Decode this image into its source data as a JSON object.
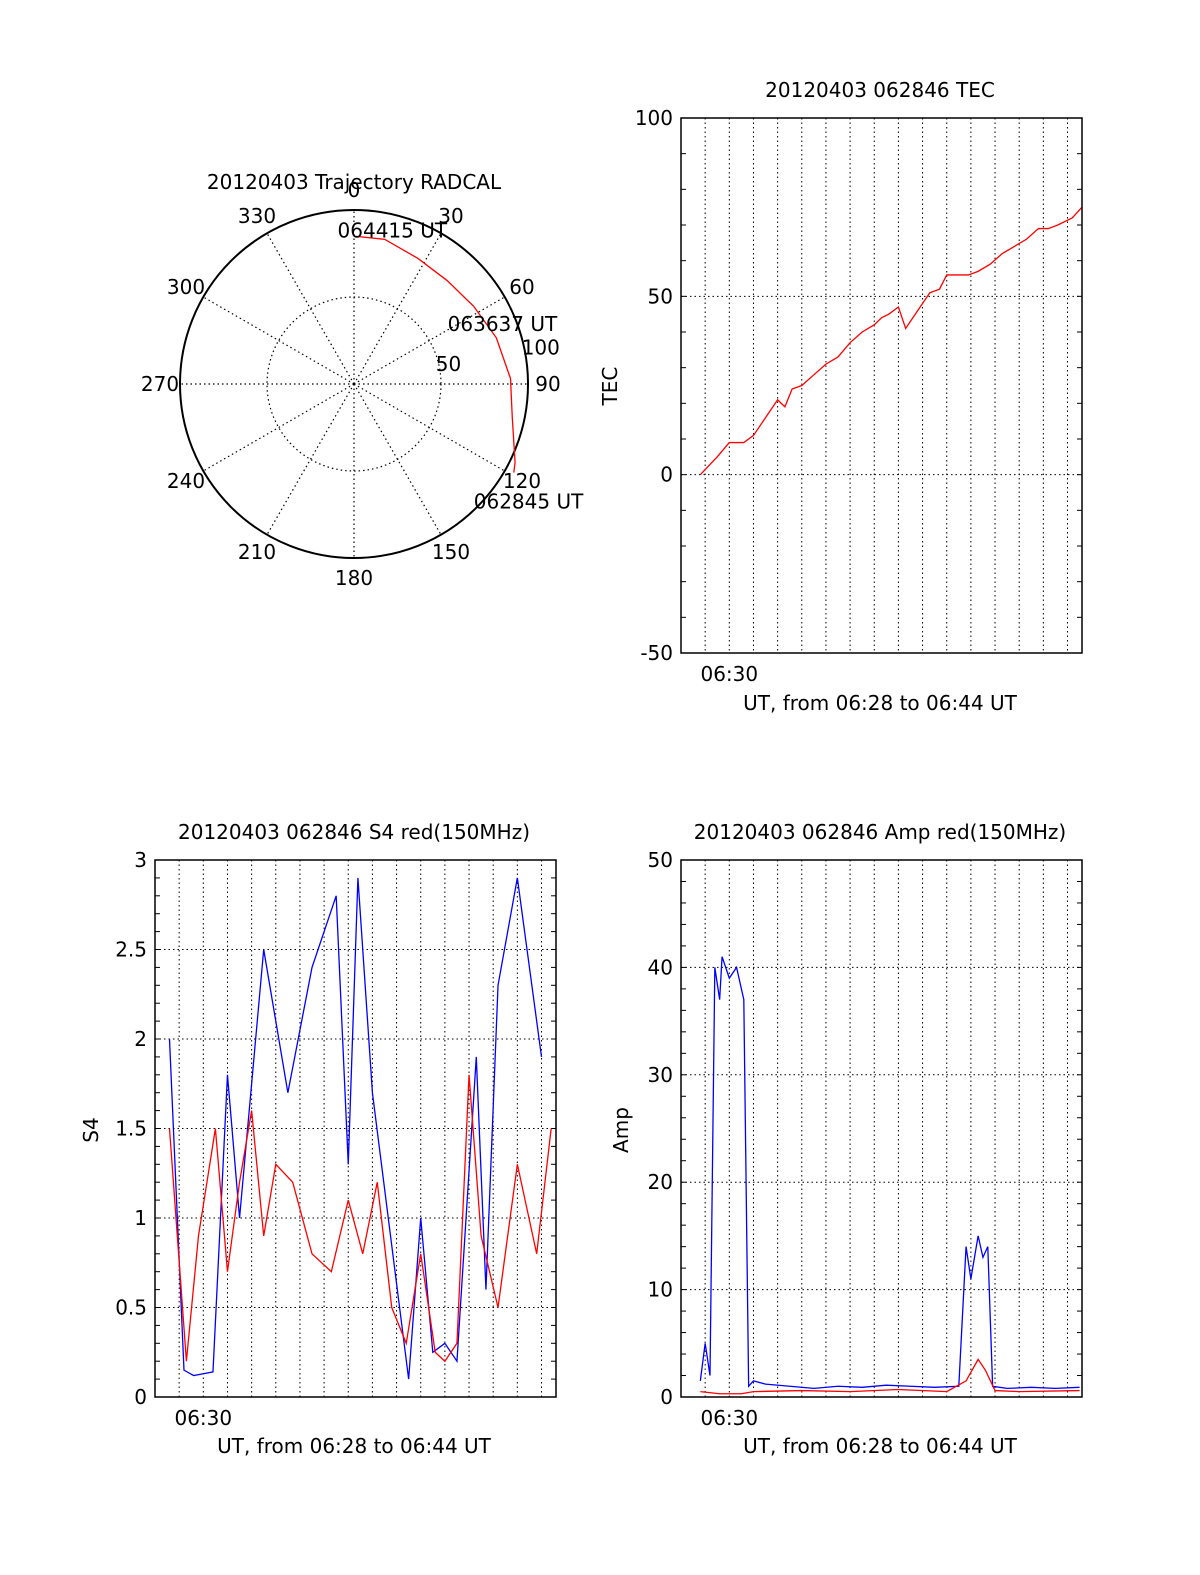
{
  "colors": {
    "red": "#ff0000",
    "blue": "#0000ff",
    "axis": "#000000",
    "grid": "#000000"
  },
  "chart_data": [
    {
      "id": "trajectory",
      "type": "polar",
      "title": "20120403 Trajectory RADCAL",
      "angle_labels": [
        "0",
        "30",
        "60",
        "90",
        "120",
        "150",
        "180",
        "210",
        "240",
        "270",
        "300",
        "330"
      ],
      "radius_labels": [
        "50",
        "100"
      ],
      "grid": true,
      "track": {
        "color": "red",
        "points": [
          {
            "az": 0,
            "zenith": 85
          },
          {
            "az": 12,
            "zenith": 85
          },
          {
            "az": 27,
            "zenith": 81
          },
          {
            "az": 42,
            "zenith": 80
          },
          {
            "az": 57,
            "zenith": 82
          },
          {
            "az": 72,
            "zenith": 86
          },
          {
            "az": 88,
            "zenith": 90
          },
          {
            "az": 102,
            "zenith": 93
          },
          {
            "az": 116,
            "zenith": 103
          },
          {
            "az": 119,
            "zenith": 105
          }
        ]
      },
      "annotations": [
        {
          "text": "064415 UT",
          "az": 14,
          "zenith": 91
        },
        {
          "text": "063637 UT",
          "az": 68,
          "zenith": 92
        },
        {
          "text": "062845 UT",
          "az": 124,
          "zenith": 121
        }
      ]
    },
    {
      "id": "tec",
      "type": "line",
      "title": "20120403 062846 TEC",
      "xlabel": "UT, from 06:28 to 06:44 UT",
      "ylabel": "TEC",
      "xlim": [
        28.0,
        44.6
      ],
      "ylim": [
        -50,
        100
      ],
      "yticks": [
        -50,
        0,
        50,
        100
      ],
      "xticks": [
        {
          "value": 30.0,
          "label": "06:30"
        }
      ],
      "grid": true,
      "series": [
        {
          "color": "red",
          "x": [
            28.8,
            29.5,
            30.0,
            30.6,
            31.0,
            31.5,
            32.0,
            32.3,
            32.6,
            33.0,
            33.5,
            34.0,
            34.5,
            35.0,
            35.5,
            36.0,
            36.3,
            36.6,
            37.0,
            37.3,
            37.5,
            37.9,
            38.3,
            38.7,
            39.0,
            39.4,
            39.9,
            40.3,
            40.8,
            41.3,
            41.8,
            42.3,
            42.8,
            43.2,
            43.6,
            44.2,
            44.6
          ],
          "y": [
            0,
            5,
            9,
            9,
            11,
            16,
            21,
            19,
            24,
            25,
            28,
            31,
            33,
            37,
            40,
            42,
            44,
            45,
            47,
            41,
            43,
            47,
            51,
            52,
            56,
            56,
            56,
            57,
            59,
            62,
            64,
            66,
            69,
            69,
            70,
            72,
            75
          ]
        }
      ]
    },
    {
      "id": "s4",
      "type": "line",
      "title": "20120403 062846 S4 red(150MHz)",
      "xlabel": "UT, from 06:28 to 06:44 UT",
      "ylabel": "S4",
      "xlim": [
        28.0,
        44.6
      ],
      "ylim": [
        0,
        3
      ],
      "yticks": [
        0,
        0.5,
        1,
        1.5,
        2,
        2.5,
        3
      ],
      "xticks": [
        {
          "value": 30.0,
          "label": "06:30"
        }
      ],
      "grid": true,
      "series": [
        {
          "color": "blue",
          "x": [
            28.6,
            29.2,
            29.6,
            30.0,
            30.4,
            31.0,
            31.5,
            32.5,
            33.5,
            34.5,
            35.5,
            36.0,
            36.4,
            37.0,
            38.5,
            39.0,
            39.5,
            40.0,
            40.5,
            41.3,
            41.7,
            42.2,
            43.0,
            44.0
          ],
          "y": [
            2.0,
            0.15,
            0.12,
            0.13,
            0.14,
            1.8,
            1.0,
            2.5,
            1.7,
            2.4,
            2.8,
            1.3,
            2.9,
            1.7,
            0.1,
            1.0,
            0.25,
            0.3,
            0.2,
            1.9,
            0.6,
            2.3,
            2.9,
            1.9
          ]
        },
        {
          "color": "red",
          "x": [
            28.6,
            29.3,
            29.8,
            30.5,
            31.0,
            31.5,
            32.0,
            32.5,
            33.0,
            33.7,
            34.5,
            35.3,
            36.0,
            36.6,
            37.2,
            37.8,
            38.4,
            39.0,
            39.6,
            40.0,
            40.5,
            41.0,
            41.5,
            42.2,
            43.0,
            43.8,
            44.4
          ],
          "y": [
            1.5,
            0.2,
            0.9,
            1.5,
            0.7,
            1.2,
            1.6,
            0.9,
            1.3,
            1.2,
            0.8,
            0.7,
            1.1,
            0.8,
            1.2,
            0.5,
            0.3,
            0.8,
            0.25,
            0.2,
            0.3,
            1.8,
            0.9,
            0.5,
            1.3,
            0.8,
            1.5
          ]
        }
      ]
    },
    {
      "id": "amp",
      "type": "line",
      "title": "20120403 062846 Amp red(150MHz)",
      "xlabel": "UT, from 06:28 to 06:44 UT",
      "ylabel": "Amp",
      "xlim": [
        28.0,
        44.6
      ],
      "ylim": [
        0,
        50
      ],
      "yticks": [
        0,
        10,
        20,
        30,
        40,
        50
      ],
      "xticks": [
        {
          "value": 30.0,
          "label": "06:30"
        }
      ],
      "grid": true,
      "series": [
        {
          "color": "blue",
          "x": [
            28.8,
            29.0,
            29.2,
            29.4,
            29.6,
            29.7,
            30.0,
            30.3,
            30.6,
            30.8,
            31.0,
            31.5,
            32.5,
            33.5,
            34.5,
            35.5,
            36.5,
            37.5,
            38.5,
            39.5,
            39.8,
            40.0,
            40.3,
            40.5,
            40.7,
            40.9,
            41.5,
            42.5,
            43.5,
            44.5
          ],
          "y": [
            1.5,
            5.0,
            2.0,
            40.0,
            37.0,
            41.0,
            39.0,
            40.0,
            37.0,
            1.0,
            1.5,
            1.2,
            1.0,
            0.8,
            1.0,
            0.9,
            1.1,
            1.0,
            0.9,
            1.0,
            14.0,
            11.0,
            15.0,
            13.0,
            14.0,
            1.0,
            0.8,
            0.9,
            0.8,
            0.9
          ]
        },
        {
          "color": "red",
          "x": [
            28.8,
            29.6,
            30.5,
            31.0,
            33.0,
            35.0,
            37.0,
            39.0,
            39.8,
            40.3,
            40.6,
            41.0,
            42.0,
            44.5
          ],
          "y": [
            0.5,
            0.3,
            0.3,
            0.5,
            0.6,
            0.5,
            0.7,
            0.5,
            1.5,
            3.5,
            2.5,
            0.6,
            0.5,
            0.6
          ]
        }
      ]
    }
  ]
}
